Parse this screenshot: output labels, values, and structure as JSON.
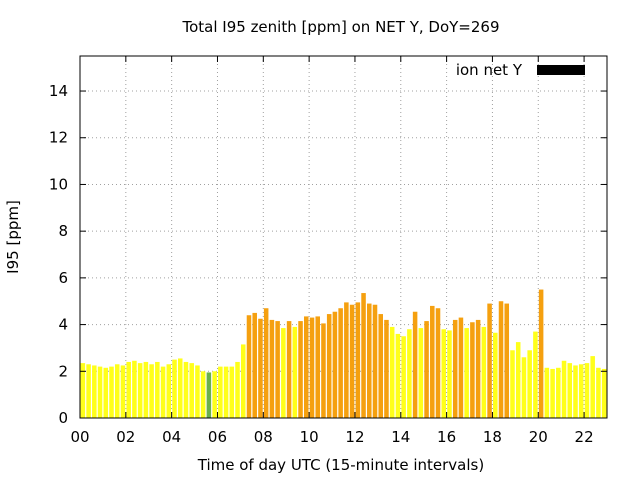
{
  "chart_data": {
    "type": "bar",
    "title": "Total I95 zenith [ppm] on NET Y, DoY=269",
    "xlabel": "Time of day UTC (15-minute intervals)",
    "ylabel": "I95 [ppm]",
    "xlim": [
      0,
      23
    ],
    "ylim": [
      0,
      15.5
    ],
    "x_ticks": [
      0,
      2,
      4,
      6,
      8,
      10,
      12,
      14,
      16,
      18,
      20,
      22
    ],
    "x_tick_labels": [
      "00",
      "02",
      "04",
      "06",
      "08",
      "10",
      "12",
      "14",
      "16",
      "18",
      "20",
      "22"
    ],
    "y_ticks": [
      0,
      2,
      4,
      6,
      8,
      10,
      12,
      14
    ],
    "y_tick_labels": [
      "0",
      "2",
      "4",
      "6",
      "8",
      "10",
      "12",
      "14"
    ],
    "grid": true,
    "legend": {
      "label": "ion net Y",
      "position": "top-right",
      "color": "#000000"
    },
    "bar_interval_hours": 0.25,
    "colors": {
      "low": "#ffff1a",
      "high": "#f5a00f",
      "marked": "#6ab04c"
    },
    "high_threshold": 4,
    "bars": [
      {
        "x": 0.125,
        "value": 2.35
      },
      {
        "x": 0.375,
        "value": 2.3
      },
      {
        "x": 0.625,
        "value": 2.25
      },
      {
        "x": 0.875,
        "value": 2.2
      },
      {
        "x": 1.125,
        "value": 2.15
      },
      {
        "x": 1.375,
        "value": 2.2
      },
      {
        "x": 1.625,
        "value": 2.3
      },
      {
        "x": 1.875,
        "value": 2.25
      },
      {
        "x": 2.125,
        "value": 2.4
      },
      {
        "x": 2.375,
        "value": 2.45
      },
      {
        "x": 2.625,
        "value": 2.35
      },
      {
        "x": 2.875,
        "value": 2.4
      },
      {
        "x": 3.125,
        "value": 2.3
      },
      {
        "x": 3.375,
        "value": 2.4
      },
      {
        "x": 3.625,
        "value": 2.2
      },
      {
        "x": 3.875,
        "value": 2.3
      },
      {
        "x": 4.125,
        "value": 2.5
      },
      {
        "x": 4.375,
        "value": 2.55
      },
      {
        "x": 4.625,
        "value": 2.4
      },
      {
        "x": 4.875,
        "value": 2.35
      },
      {
        "x": 5.125,
        "value": 2.25
      },
      {
        "x": 5.375,
        "value": 2.0
      },
      {
        "x": 5.625,
        "value": 1.95,
        "marked": true
      },
      {
        "x": 5.875,
        "value": 2.0
      },
      {
        "x": 6.125,
        "value": 2.2
      },
      {
        "x": 6.375,
        "value": 2.2
      },
      {
        "x": 6.625,
        "value": 2.2
      },
      {
        "x": 6.875,
        "value": 2.4
      },
      {
        "x": 7.125,
        "value": 3.15
      },
      {
        "x": 7.375,
        "value": 4.4
      },
      {
        "x": 7.625,
        "value": 4.5
      },
      {
        "x": 7.875,
        "value": 4.25
      },
      {
        "x": 8.125,
        "value": 4.7
      },
      {
        "x": 8.375,
        "value": 4.2
      },
      {
        "x": 8.625,
        "value": 4.15
      },
      {
        "x": 8.875,
        "value": 3.85
      },
      {
        "x": 9.125,
        "value": 4.15
      },
      {
        "x": 9.375,
        "value": 3.9
      },
      {
        "x": 9.625,
        "value": 4.15
      },
      {
        "x": 9.875,
        "value": 4.35
      },
      {
        "x": 10.125,
        "value": 4.3
      },
      {
        "x": 10.375,
        "value": 4.35
      },
      {
        "x": 10.625,
        "value": 4.05
      },
      {
        "x": 10.875,
        "value": 4.45
      },
      {
        "x": 11.125,
        "value": 4.55
      },
      {
        "x": 11.375,
        "value": 4.7
      },
      {
        "x": 11.625,
        "value": 4.95
      },
      {
        "x": 11.875,
        "value": 4.85
      },
      {
        "x": 12.125,
        "value": 4.95
      },
      {
        "x": 12.375,
        "value": 5.35
      },
      {
        "x": 12.625,
        "value": 4.9
      },
      {
        "x": 12.875,
        "value": 4.85
      },
      {
        "x": 13.125,
        "value": 4.45
      },
      {
        "x": 13.375,
        "value": 4.2
      },
      {
        "x": 13.625,
        "value": 3.9
      },
      {
        "x": 13.875,
        "value": 3.6
      },
      {
        "x": 14.125,
        "value": 3.5
      },
      {
        "x": 14.375,
        "value": 3.8
      },
      {
        "x": 14.625,
        "value": 4.55
      },
      {
        "x": 14.875,
        "value": 3.85
      },
      {
        "x": 15.125,
        "value": 4.15
      },
      {
        "x": 15.375,
        "value": 4.8
      },
      {
        "x": 15.625,
        "value": 4.7
      },
      {
        "x": 15.875,
        "value": 3.8
      },
      {
        "x": 16.125,
        "value": 3.75
      },
      {
        "x": 16.375,
        "value": 4.2
      },
      {
        "x": 16.625,
        "value": 4.3
      },
      {
        "x": 16.875,
        "value": 3.85
      },
      {
        "x": 17.125,
        "value": 4.1
      },
      {
        "x": 17.375,
        "value": 4.2
      },
      {
        "x": 17.625,
        "value": 3.9
      },
      {
        "x": 17.875,
        "value": 4.9
      },
      {
        "x": 18.125,
        "value": 3.65
      },
      {
        "x": 18.375,
        "value": 5.0
      },
      {
        "x": 18.625,
        "value": 4.9
      },
      {
        "x": 18.875,
        "value": 2.9
      },
      {
        "x": 19.125,
        "value": 3.25
      },
      {
        "x": 19.375,
        "value": 2.6
      },
      {
        "x": 19.625,
        "value": 2.9
      },
      {
        "x": 19.875,
        "value": 3.7
      },
      {
        "x": 20.125,
        "value": 5.5
      },
      {
        "x": 20.375,
        "value": 2.15
      },
      {
        "x": 20.625,
        "value": 2.1
      },
      {
        "x": 20.875,
        "value": 2.15
      },
      {
        "x": 21.125,
        "value": 2.45
      },
      {
        "x": 21.375,
        "value": 2.35
      },
      {
        "x": 21.625,
        "value": 2.25
      },
      {
        "x": 21.875,
        "value": 2.3
      },
      {
        "x": 22.125,
        "value": 2.35
      },
      {
        "x": 22.375,
        "value": 2.65
      },
      {
        "x": 22.625,
        "value": 2.15
      },
      {
        "x": 22.875,
        "value": 2.1
      }
    ]
  }
}
